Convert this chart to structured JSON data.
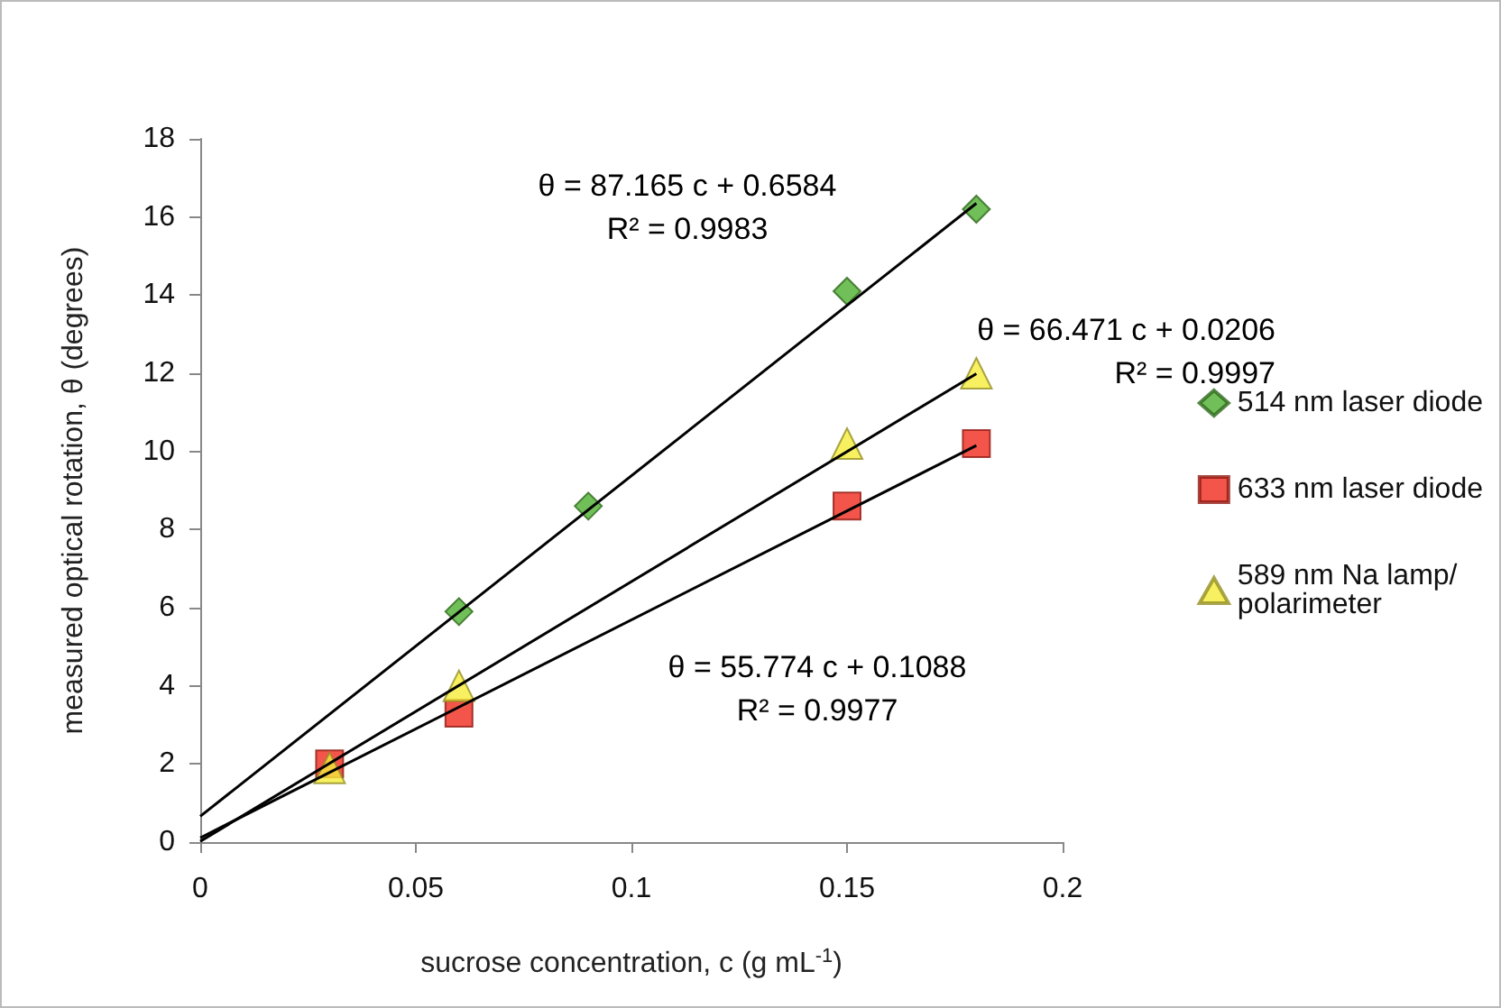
{
  "chart_data": {
    "type": "scatter",
    "xlabel": "sucrose concentration, c (g mL$^{-1}$)",
    "ylabel": "measured optical rotation, θ (degrees)",
    "xlim": [
      0,
      0.2
    ],
    "xticks": [
      0,
      0.05,
      0.1,
      0.15,
      0.2
    ],
    "ylim": [
      0,
      18
    ],
    "yticks": [
      0,
      2,
      4,
      6,
      8,
      10,
      12,
      14,
      16,
      18
    ],
    "grid": false,
    "legend": "right",
    "series": [
      {
        "name": "514 nm laser diode",
        "marker": "diamond",
        "color": "#4caf2f",
        "x": [
          0.06,
          0.09,
          0.15,
          0.18
        ],
        "values": [
          5.9,
          8.6,
          14.1,
          16.2
        ]
      },
      {
        "name": "633 nm laser diode",
        "marker": "square",
        "color": "#f02a1e",
        "x": [
          0.03,
          0.06,
          0.15,
          0.18
        ],
        "values": [
          2.0,
          3.3,
          8.6,
          10.2
        ]
      },
      {
        "name": "589 nm Na lamp/polarimeter",
        "marker": "triangle",
        "color": "#f5ec3a",
        "x": [
          0.03,
          0.06,
          0.15,
          0.18
        ],
        "values": [
          1.9,
          4.0,
          10.2,
          12.0
        ]
      },
      {
        "type": "line",
        "marker": "none",
        "color": "#000000",
        "x": [
          0,
          0.18
        ],
        "values": [
          0.66,
          16.35
        ]
      },
      {
        "type": "line",
        "marker": "none",
        "color": "#000000",
        "x": [
          0,
          0.18
        ],
        "values": [
          0.02,
          11.99
        ]
      },
      {
        "type": "line",
        "marker": "none",
        "color": "#000000",
        "x": [
          0,
          0.18
        ],
        "values": [
          0.11,
          10.15
        ]
      }
    ],
    "annotations": [
      "θ = 87.165 c + 0.6584\nR² = 0.9983",
      "θ = 66.471 c + 0.0206\nR² = 0.9997",
      "θ = 55.774 c + 0.1088\nR² = 0.9977"
    ]
  }
}
